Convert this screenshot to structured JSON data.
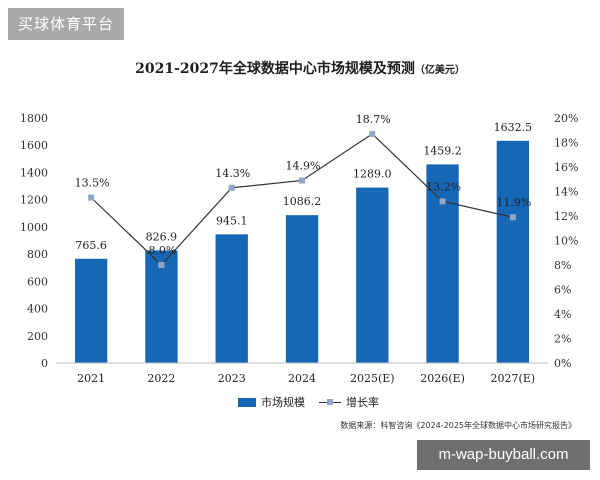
{
  "watermarks": {
    "top": "买球体育平台",
    "bottom": "m-wap-buyball.com"
  },
  "title": {
    "main": "2021-2027年全球数据中心市场规模及预测",
    "unit": "（亿美元）"
  },
  "source": "数据来源：科智咨询《2024-2025年全球数据中心市场研究报告》",
  "colors": {
    "bar": "#1767b7",
    "line": "#333333",
    "marker": "#8fa6c4"
  },
  "chart_data": {
    "type": "bar",
    "categories": [
      "2021",
      "2022",
      "2023",
      "2024",
      "2025(E)",
      "2026(E)",
      "2027(E)"
    ],
    "series": [
      {
        "name": "市场规模",
        "type": "bar",
        "axis": "left",
        "values": [
          765.6,
          826.9,
          945.1,
          1086.2,
          1289.0,
          1459.2,
          1632.5
        ],
        "labels": [
          "765.6",
          "826.9",
          "945.1",
          "1086.2",
          "1289.0",
          "1459.2",
          "1632.5"
        ]
      },
      {
        "name": "增长率",
        "type": "line",
        "axis": "right",
        "values": [
          13.5,
          8.0,
          14.3,
          14.9,
          18.7,
          13.2,
          11.9
        ],
        "labels": [
          "13.5%",
          "8.0%",
          "14.3%",
          "14.9%",
          "18.7%",
          "13.2%",
          "11.9%"
        ]
      }
    ],
    "ylim": [
      0,
      1800
    ],
    "yticks": [
      "0",
      "200",
      "400",
      "600",
      "800",
      "1000",
      "1200",
      "1400",
      "1600",
      "1800"
    ],
    "y2lim": [
      0,
      20
    ],
    "y2ticks": [
      "0%",
      "2%",
      "4%",
      "6%",
      "8%",
      "10%",
      "12%",
      "14%",
      "16%",
      "18%",
      "20%"
    ],
    "grid": false,
    "legend_position": "bottom-center"
  }
}
